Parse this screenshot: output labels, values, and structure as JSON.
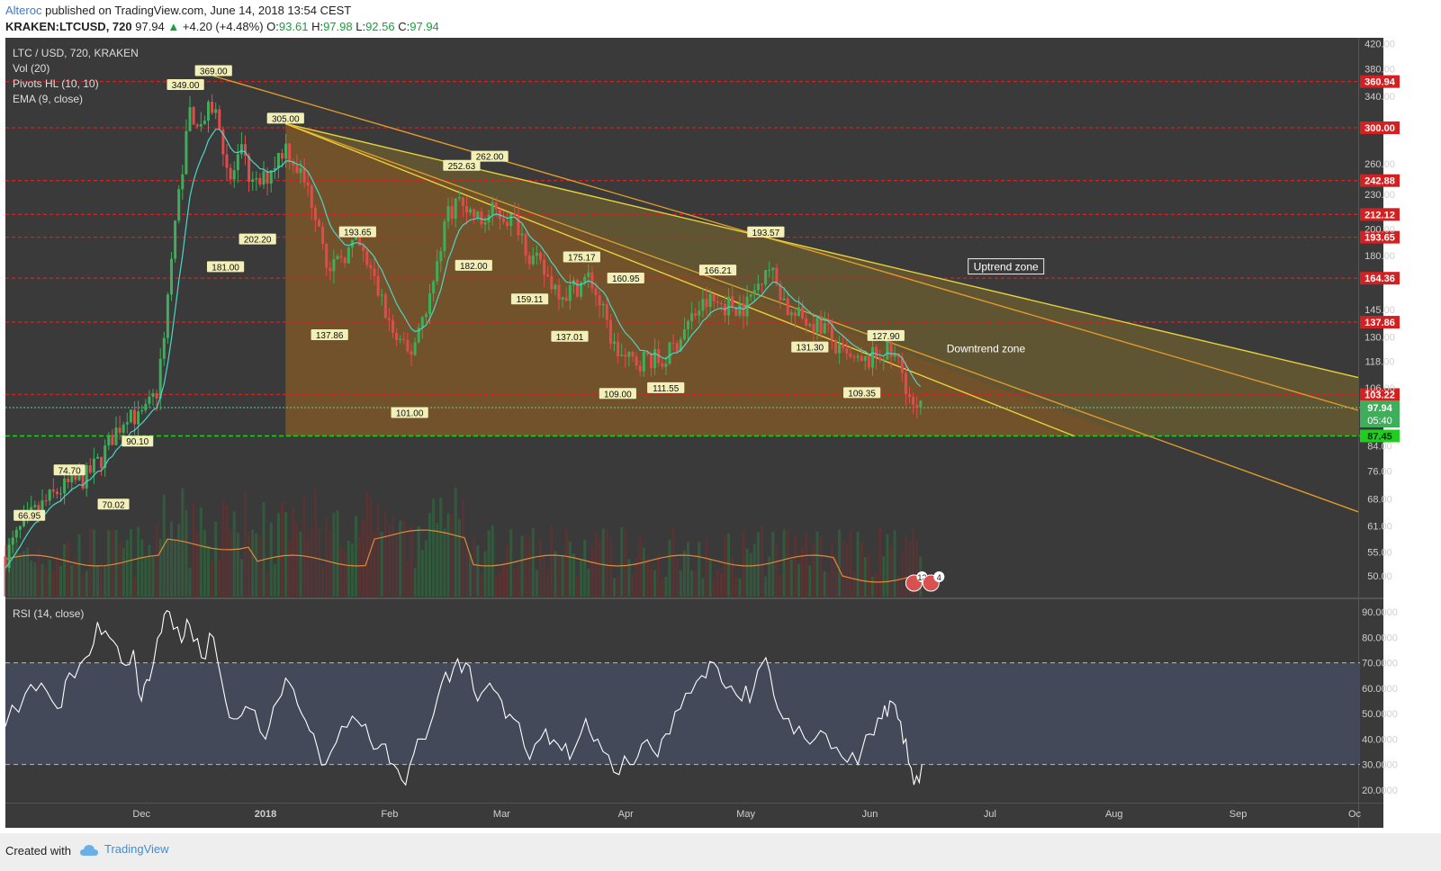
{
  "header": {
    "author": "Alteroc",
    "published_text": "published on TradingView.com, June 14, 2018 13:54 CEST",
    "symbol": "KRAKEN:LTCUSD, 720",
    "last": "97.94",
    "change": "+4.20 (+4.48%)",
    "o_label": "O:",
    "o_value": "93.61",
    "h_label": "H:",
    "h_value": "97.98",
    "l_label": "L:",
    "l_value": "92.56",
    "c_label": "C:",
    "c_value": "97.94"
  },
  "legend": [
    "LTC / USD, 720, KRAKEN",
    "Vol (20)",
    "Pivots HL (10, 10)",
    "EMA (9, close)"
  ],
  "rsi_label": "RSI (14, close)",
  "footer": {
    "created": "Created with",
    "brand": "TradingView"
  },
  "colors": {
    "background": "#3a3a3a",
    "candle_up": "#3fae5a",
    "candle_down": "#e24b4b",
    "ema": "#4bd6c8",
    "resistance": "#d42020",
    "support": "#22cc22",
    "trend_orange": "#e09a2a",
    "trend_yellow": "#e6d23a",
    "rsi_line": "#ffffff"
  },
  "chart_data": {
    "type": "candlestick",
    "title": "LTC / USD, 720, KRAKEN",
    "x_labels": [
      "Dec",
      "2018",
      "Feb",
      "Mar",
      "Apr",
      "May",
      "Jun",
      "Jul",
      "Aug",
      "Sep",
      "Oc"
    ],
    "y_ticks": [
      "420.00",
      "380.00",
      "340.00",
      "260.00",
      "230.00",
      "200.00",
      "180.00",
      "145.00",
      "130.00",
      "118.00",
      "106.00",
      "84.00",
      "76.00",
      "68.00",
      "61.00",
      "55.00",
      "50.00"
    ],
    "y_scale": "log",
    "y_range": [
      46,
      430
    ],
    "resistance_levels": [
      {
        "value": 360.94,
        "label": "360.94"
      },
      {
        "value": 300.0,
        "label": "300.00"
      },
      {
        "value": 242.88,
        "label": "242.88"
      },
      {
        "value": 212.12,
        "label": "212.12"
      },
      {
        "value": 193.65,
        "label": "193.65"
      },
      {
        "value": 164.36,
        "label": "164.36"
      },
      {
        "value": 137.86,
        "label": "137.86"
      },
      {
        "value": 103.22,
        "label": "103.22"
      }
    ],
    "support_level": {
      "value": 87.45,
      "label": "87.45"
    },
    "last_price": {
      "value": 97.94,
      "label": "97.94",
      "countdown": "05:40"
    },
    "pivots": [
      {
        "date": "2017-11-03",
        "value": 66.95,
        "label": "66.95",
        "type": "low"
      },
      {
        "date": "2017-11-13",
        "value": 74.7,
        "label": "74.70",
        "type": "high"
      },
      {
        "date": "2017-11-24",
        "value": 70.02,
        "label": "70.02",
        "type": "low"
      },
      {
        "date": "2017-11-30",
        "value": 90.1,
        "label": "90.10",
        "type": "low"
      },
      {
        "date": "2017-12-12",
        "value": 349.0,
        "label": "349.00",
        "type": "high"
      },
      {
        "date": "2017-12-19",
        "value": 369.0,
        "label": "369.00",
        "type": "high"
      },
      {
        "date": "2017-12-22",
        "value": 181.0,
        "label": "181.00",
        "type": "low"
      },
      {
        "date": "2017-12-30",
        "value": 202.2,
        "label": "202.20",
        "type": "low"
      },
      {
        "date": "2018-01-06",
        "value": 305.0,
        "label": "305.00",
        "type": "high"
      },
      {
        "date": "2018-01-17",
        "value": 137.86,
        "label": "137.86",
        "type": "low"
      },
      {
        "date": "2018-01-24",
        "value": 193.65,
        "label": "193.65",
        "type": "high"
      },
      {
        "date": "2018-02-06",
        "value": 101.0,
        "label": "101.00",
        "type": "low"
      },
      {
        "date": "2018-02-19",
        "value": 252.63,
        "label": "252.63",
        "type": "high"
      },
      {
        "date": "2018-02-22",
        "value": 182.0,
        "label": "182.00",
        "type": "low"
      },
      {
        "date": "2018-02-26",
        "value": 262.0,
        "label": "262.00",
        "type": "high"
      },
      {
        "date": "2018-03-08",
        "value": 159.11,
        "label": "159.11",
        "type": "low"
      },
      {
        "date": "2018-03-18",
        "value": 137.01,
        "label": "137.01",
        "type": "low"
      },
      {
        "date": "2018-03-21",
        "value": 175.17,
        "label": "175.17",
        "type": "high"
      },
      {
        "date": "2018-03-30",
        "value": 109.0,
        "label": "109.00",
        "type": "low"
      },
      {
        "date": "2018-04-01",
        "value": 160.95,
        "label": "160.95",
        "type": "high"
      },
      {
        "date": "2018-04-11",
        "value": 111.55,
        "label": "111.55",
        "type": "low"
      },
      {
        "date": "2018-04-24",
        "value": 166.21,
        "label": "166.21",
        "type": "high"
      },
      {
        "date": "2018-05-06",
        "value": 193.57,
        "label": "193.57",
        "type": "high"
      },
      {
        "date": "2018-05-17",
        "value": 131.3,
        "label": "131.30",
        "type": "low"
      },
      {
        "date": "2018-05-30",
        "value": 109.35,
        "label": "109.35",
        "type": "low"
      },
      {
        "date": "2018-06-05",
        "value": 127.9,
        "label": "127.90",
        "type": "high"
      }
    ],
    "annotations": [
      {
        "text": "Uptrend zone",
        "boxed": true
      },
      {
        "text": "Downtrend zone",
        "boxed": false
      }
    ],
    "price_path": [
      [
        "2017-10-28",
        54
      ],
      [
        "2017-11-02",
        62
      ],
      [
        "2017-11-06",
        66
      ],
      [
        "2017-11-10",
        70
      ],
      [
        "2017-11-13",
        72
      ],
      [
        "2017-11-17",
        74
      ],
      [
        "2017-11-21",
        80
      ],
      [
        "2017-11-24",
        88
      ],
      [
        "2017-11-26",
        92
      ],
      [
        "2017-11-28",
        98
      ],
      [
        "2017-11-30",
        93
      ],
      [
        "2017-12-02",
        96
      ],
      [
        "2017-12-05",
        105
      ],
      [
        "2017-12-07",
        140
      ],
      [
        "2017-12-09",
        190
      ],
      [
        "2017-12-11",
        250
      ],
      [
        "2017-12-13",
        320
      ],
      [
        "2017-12-16",
        305
      ],
      [
        "2017-12-19",
        330
      ],
      [
        "2017-12-21",
        290
      ],
      [
        "2017-12-23",
        240
      ],
      [
        "2017-12-26",
        270
      ],
      [
        "2017-12-29",
        235
      ],
      [
        "2018-01-01",
        245
      ],
      [
        "2018-01-03",
        260
      ],
      [
        "2018-01-06",
        280
      ],
      [
        "2018-01-09",
        255
      ],
      [
        "2018-01-12",
        230
      ],
      [
        "2018-01-15",
        200
      ],
      [
        "2018-01-17",
        165
      ],
      [
        "2018-01-20",
        180
      ],
      [
        "2018-01-24",
        188
      ],
      [
        "2018-01-27",
        170
      ],
      [
        "2018-01-30",
        150
      ],
      [
        "2018-02-02",
        130
      ],
      [
        "2018-02-06",
        120
      ],
      [
        "2018-02-09",
        140
      ],
      [
        "2018-02-12",
        160
      ],
      [
        "2018-02-15",
        210
      ],
      [
        "2018-02-18",
        225
      ],
      [
        "2018-02-21",
        215
      ],
      [
        "2018-02-24",
        205
      ],
      [
        "2018-02-27",
        215
      ],
      [
        "2018-03-02",
        210
      ],
      [
        "2018-03-05",
        205
      ],
      [
        "2018-03-08",
        180
      ],
      [
        "2018-03-11",
        170
      ],
      [
        "2018-03-14",
        160
      ],
      [
        "2018-03-17",
        155
      ],
      [
        "2018-03-20",
        160
      ],
      [
        "2018-03-23",
        165
      ],
      [
        "2018-03-26",
        145
      ],
      [
        "2018-03-29",
        125
      ],
      [
        "2018-04-01",
        118
      ],
      [
        "2018-04-04",
        118
      ],
      [
        "2018-04-07",
        120
      ],
      [
        "2018-04-10",
        117
      ],
      [
        "2018-04-13",
        125
      ],
      [
        "2018-04-16",
        135
      ],
      [
        "2018-04-19",
        145
      ],
      [
        "2018-04-22",
        150
      ],
      [
        "2018-04-25",
        148
      ],
      [
        "2018-04-28",
        148
      ],
      [
        "2018-05-01",
        147
      ],
      [
        "2018-05-04",
        160
      ],
      [
        "2018-05-06",
        175
      ],
      [
        "2018-05-09",
        160
      ],
      [
        "2018-05-12",
        142
      ],
      [
        "2018-05-15",
        140
      ],
      [
        "2018-05-18",
        138
      ],
      [
        "2018-05-21",
        135
      ],
      [
        "2018-05-24",
        122
      ],
      [
        "2018-05-27",
        118
      ],
      [
        "2018-05-30",
        116
      ],
      [
        "2018-06-02",
        120
      ],
      [
        "2018-06-05",
        123
      ],
      [
        "2018-06-08",
        118
      ],
      [
        "2018-06-10",
        108
      ],
      [
        "2018-06-12",
        95
      ],
      [
        "2018-06-14",
        97.94
      ]
    ],
    "rsi": {
      "label": "RSI (14, close)",
      "y_ticks": [
        "90.0000",
        "80.0000",
        "70.0000",
        "60.0000",
        "50.0000",
        "40.0000",
        "30.0000",
        "20.0000"
      ],
      "y_range": [
        15,
        95
      ],
      "overbought": 70,
      "oversold": 30,
      "values": [
        [
          "2017-10-28",
          45
        ],
        [
          "2017-11-02",
          58
        ],
        [
          "2017-11-06",
          62
        ],
        [
          "2017-11-10",
          52
        ],
        [
          "2017-11-13",
          66
        ],
        [
          "2017-11-17",
          72
        ],
        [
          "2017-11-20",
          86
        ],
        [
          "2017-11-23",
          80
        ],
        [
          "2017-11-26",
          70
        ],
        [
          "2017-11-29",
          75
        ],
        [
          "2017-12-01",
          55
        ],
        [
          "2017-12-03",
          63
        ],
        [
          "2017-12-06",
          82
        ],
        [
          "2017-12-08",
          90
        ],
        [
          "2017-12-11",
          78
        ],
        [
          "2017-12-13",
          85
        ],
        [
          "2017-12-16",
          72
        ],
        [
          "2017-12-19",
          80
        ],
        [
          "2017-12-22",
          55
        ],
        [
          "2017-12-25",
          48
        ],
        [
          "2017-12-28",
          52
        ],
        [
          "2018-01-01",
          40
        ],
        [
          "2018-01-04",
          55
        ],
        [
          "2018-01-07",
          62
        ],
        [
          "2018-01-10",
          50
        ],
        [
          "2018-01-13",
          42
        ],
        [
          "2018-01-16",
          30
        ],
        [
          "2018-01-20",
          45
        ],
        [
          "2018-01-24",
          47
        ],
        [
          "2018-01-27",
          40
        ],
        [
          "2018-01-30",
          38
        ],
        [
          "2018-02-02",
          30
        ],
        [
          "2018-02-05",
          22
        ],
        [
          "2018-02-08",
          40
        ],
        [
          "2018-02-11",
          45
        ],
        [
          "2018-02-14",
          62
        ],
        [
          "2018-02-17",
          68
        ],
        [
          "2018-02-20",
          70
        ],
        [
          "2018-02-23",
          55
        ],
        [
          "2018-02-26",
          62
        ],
        [
          "2018-03-01",
          55
        ],
        [
          "2018-03-04",
          48
        ],
        [
          "2018-03-08",
          32
        ],
        [
          "2018-03-12",
          44
        ],
        [
          "2018-03-15",
          38
        ],
        [
          "2018-03-18",
          32
        ],
        [
          "2018-03-22",
          48
        ],
        [
          "2018-03-25",
          40
        ],
        [
          "2018-03-29",
          27
        ],
        [
          "2018-04-02",
          30
        ],
        [
          "2018-04-05",
          38
        ],
        [
          "2018-04-09",
          33
        ],
        [
          "2018-04-12",
          42
        ],
        [
          "2018-04-16",
          58
        ],
        [
          "2018-04-20",
          65
        ],
        [
          "2018-04-23",
          70
        ],
        [
          "2018-04-26",
          60
        ],
        [
          "2018-04-30",
          55
        ],
        [
          "2018-05-03",
          60
        ],
        [
          "2018-05-06",
          72
        ],
        [
          "2018-05-09",
          52
        ],
        [
          "2018-05-13",
          42
        ],
        [
          "2018-05-17",
          38
        ],
        [
          "2018-05-21",
          42
        ],
        [
          "2018-05-25",
          33
        ],
        [
          "2018-05-29",
          30
        ],
        [
          "2018-06-01",
          42
        ],
        [
          "2018-06-04",
          48
        ],
        [
          "2018-06-06",
          55
        ],
        [
          "2018-06-08",
          48
        ],
        [
          "2018-06-10",
          40
        ],
        [
          "2018-06-12",
          22
        ],
        [
          "2018-06-14",
          30
        ]
      ]
    }
  }
}
